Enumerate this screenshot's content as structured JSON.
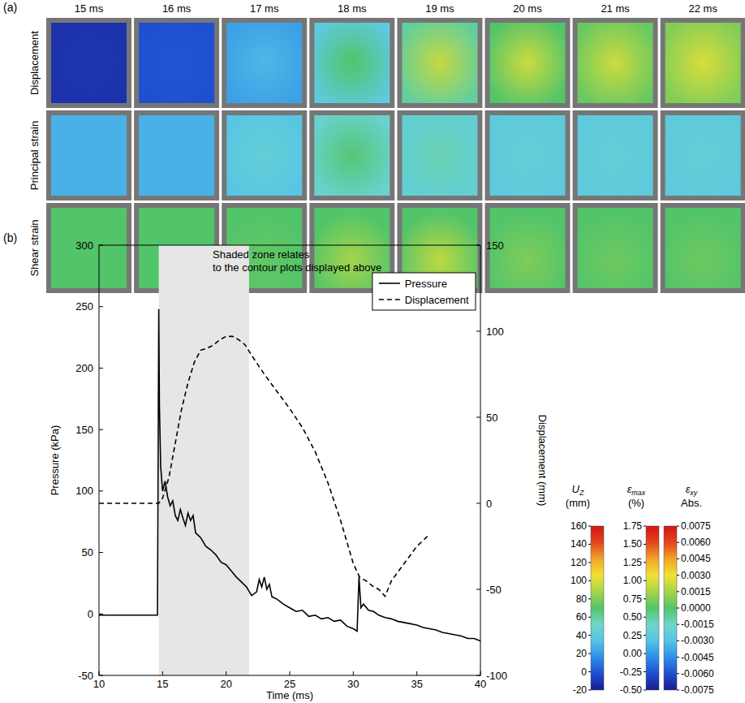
{
  "panel_a": {
    "label": "(a)",
    "times": [
      "15 ms",
      "16 ms",
      "17 ms",
      "18 ms",
      "19 ms",
      "20 ms",
      "21 ms",
      "22 ms"
    ],
    "rows": [
      {
        "name": "Displacement",
        "center": [
          -10,
          0,
          30,
          70,
          95,
          97,
          97,
          100
        ],
        "edge": [
          -12,
          -2,
          22,
          40,
          60,
          70,
          75,
          80
        ]
      },
      {
        "name": "Principal strain",
        "center": [
          0.1,
          0.1,
          0.3,
          0.6,
          0.45,
          0.3,
          0.3,
          0.3
        ],
        "edge": [
          0.1,
          0.1,
          0.2,
          0.35,
          0.3,
          0.25,
          0.25,
          0.25
        ]
      },
      {
        "name": "Shear strain",
        "center": [
          0,
          0,
          0.0003,
          0.0015,
          0.002,
          0.0008,
          0.0005,
          0.0005
        ],
        "edge": [
          0,
          0,
          0,
          0,
          0,
          0,
          0,
          0
        ]
      }
    ]
  },
  "chart_data": {
    "type": "line",
    "label": "(b)",
    "x_label": "Time (ms)",
    "y_label": "Pressure (kPa)",
    "y2_label": "Displacement (mm)",
    "xlim": [
      10,
      40
    ],
    "xticks": [
      10,
      15,
      20,
      25,
      30,
      35,
      40
    ],
    "ylim": [
      -50,
      300
    ],
    "yticks": [
      -50,
      0,
      50,
      100,
      150,
      200,
      250,
      300
    ],
    "y2lim": [
      -100,
      150
    ],
    "y2ticks": [
      -100,
      -50,
      0,
      50,
      100,
      150
    ],
    "legend": "upper right",
    "annotation": [
      "Shaded zone relates",
      "to the contour plots displayed above"
    ],
    "shaded_range": [
      14.7,
      21.8
    ],
    "series": [
      {
        "name": "Pressure",
        "color": "#000000",
        "line_style": "solid",
        "x": [
          10,
          14.6,
          14.7,
          14.75,
          14.85,
          15.0,
          15.2,
          15.4,
          15.6,
          15.8,
          16.0,
          16.2,
          16.4,
          16.6,
          16.8,
          17.0,
          17.2,
          17.4,
          17.6,
          17.8,
          18.0,
          18.4,
          18.8,
          19.2,
          19.6,
          20.0,
          20.4,
          20.8,
          21.2,
          21.6,
          22.0,
          22.4,
          22.6,
          22.8,
          23.0,
          23.2,
          23.4,
          23.6,
          24.0,
          24.5,
          25.0,
          25.5,
          26.0,
          26.5,
          27.0,
          27.5,
          28.0,
          28.5,
          29.0,
          29.5,
          30.0,
          30.3,
          30.45,
          30.6,
          30.8,
          31.2,
          31.6,
          32.0,
          32.5,
          33.0,
          33.5,
          34.0,
          34.5,
          35.0,
          35.5,
          36.0,
          36.5,
          37.0,
          37.5,
          38.0,
          38.5,
          39.0,
          39.5,
          40.0
        ],
        "values": [
          -1,
          -1,
          248,
          170,
          120,
          100,
          108,
          95,
          88,
          92,
          80,
          76,
          85,
          78,
          72,
          82,
          76,
          80,
          66,
          64,
          62,
          55,
          52,
          48,
          42,
          40,
          35,
          30,
          26,
          22,
          15,
          18,
          28,
          22,
          30,
          20,
          24,
          14,
          12,
          8,
          5,
          2,
          3,
          -2,
          -1,
          -4,
          -3,
          -6,
          -5,
          -10,
          -12,
          -14,
          30,
          5,
          8,
          3,
          2,
          -1,
          -3,
          -4,
          -6,
          -7,
          -8,
          -9,
          -11,
          -12,
          -13,
          -15,
          -16,
          -17,
          -18,
          -20,
          -20,
          -22
        ]
      },
      {
        "name": "Displacement",
        "color": "#000000",
        "line_style": "dashed",
        "axis": "y2",
        "x": [
          10,
          14.7,
          15.0,
          15.5,
          16.0,
          16.5,
          17.0,
          17.5,
          18.0,
          18.5,
          19.0,
          19.5,
          20.0,
          20.5,
          21.0,
          21.5,
          22.0,
          23.0,
          24.0,
          25.0,
          26.0,
          27.0,
          28.0,
          29.0,
          30.0,
          30.5,
          31.0,
          31.5,
          32.0,
          32.5,
          33.0,
          34.0,
          35.0,
          36.0
        ],
        "values": [
          0,
          0,
          3,
          15,
          35,
          55,
          70,
          82,
          89,
          90,
          92,
          95,
          97,
          97,
          95,
          92,
          86,
          75,
          65,
          55,
          44,
          30,
          12,
          -10,
          -35,
          -43,
          -45,
          -48,
          -50,
          -54,
          -45,
          -35,
          -25,
          -18
        ]
      }
    ]
  },
  "colorbars": [
    {
      "symbol": "U",
      "sub": "Z",
      "unit": "(mm)",
      "range": [
        -20,
        160
      ],
      "ticks": [
        160,
        140,
        120,
        100,
        80,
        60,
        40,
        20,
        0,
        -20
      ],
      "colors": [
        "#1a1a8c",
        "#1f4fd1",
        "#2f8ee8",
        "#55c4e6",
        "#6fd6c8",
        "#52c46a",
        "#a6d44a",
        "#f2e233",
        "#f2a22a",
        "#e2461c",
        "#d41414"
      ]
    },
    {
      "symbol": "ε",
      "sub": "max",
      "unit": "(%)",
      "range": [
        -0.5,
        1.75
      ],
      "ticks": [
        1.75,
        {
          "value": 1.5,
          "label": "1.50"
        },
        1.25,
        {
          "value": 1,
          "label": "1.00"
        },
        0.75,
        {
          "value": 0.5,
          "label": "0.50"
        },
        0.25,
        {
          "value": 0,
          "label": "0.00"
        },
        -0.25,
        {
          "value": -0.5,
          "label": "-0.50"
        }
      ],
      "colors": [
        "#1a1a8c",
        "#1f4fd1",
        "#2f8ee8",
        "#55c4e6",
        "#6fd6c8",
        "#52c46a",
        "#a6d44a",
        "#f2e233",
        "#f2a22a",
        "#e2461c",
        "#d41414"
      ]
    },
    {
      "symbol": "ε",
      "sub": "xy",
      "unit": "Abs.",
      "range": [
        -0.0075,
        0.0075
      ],
      "ticks": [
        0.0075,
        {
          "value": 0.006,
          "label": "0.0060"
        },
        0.0045,
        {
          "value": 0.003,
          "label": "0.0030"
        },
        0.0015,
        {
          "value": 0,
          "label": "0.0000"
        },
        -0.0015,
        {
          "value": -0.003,
          "label": "-0.0030"
        },
        -0.0045,
        {
          "value": -0.006,
          "label": "-0.0060"
        },
        -0.0075
      ],
      "colors": [
        "#1a1a8c",
        "#1f4fd1",
        "#2f8ee8",
        "#55c4e6",
        "#6fd6c8",
        "#52c46a",
        "#a6d44a",
        "#f2e233",
        "#f2a22a",
        "#e2461c",
        "#d41414"
      ]
    }
  ]
}
